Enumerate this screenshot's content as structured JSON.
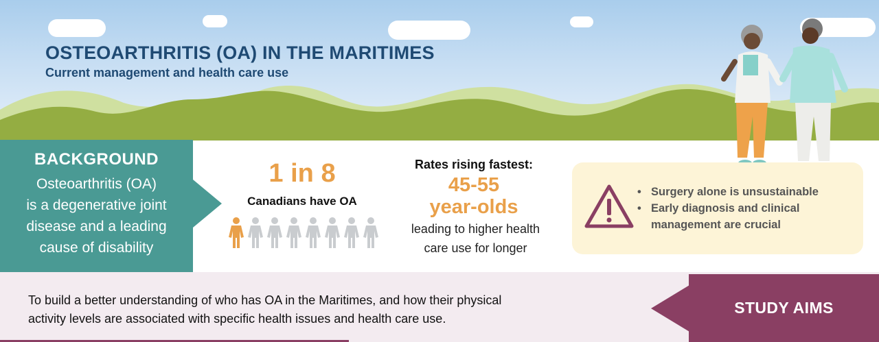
{
  "header": {
    "title": "OSTEOARTHRITIS (OA) IN THE MARITIMES",
    "subtitle": "Current management and health care use"
  },
  "background": {
    "title": "BACKGROUND",
    "lines": [
      "Osteoarthritis (OA)",
      "is a degenerative joint",
      "disease and a leading",
      "cause of disability"
    ]
  },
  "stat_prevalence": {
    "value": "1 in 8",
    "label": "Canadians have OA",
    "highlighted": 1,
    "total": 8
  },
  "stat_rates": {
    "heading": "Rates rising fastest:",
    "value_line1": "45-55",
    "value_line2": "year-olds",
    "text_line1": "leading to higher health",
    "text_line2": "care use for longer"
  },
  "warning": {
    "icon": "warning-triangle-icon",
    "bullets": [
      "Surgery alone is unsustainable",
      "Early diagnosis and clinical",
      "management are crucial"
    ]
  },
  "study_aims": {
    "title": "STUDY AIMS",
    "line1": "To build a better understanding of who has OA in the Maritimes, and how their physical",
    "line2": "activity levels are associated with specific health issues and health care use."
  },
  "colors": {
    "navy": "#1f4a73",
    "teal": "#4a9a94",
    "orange": "#e9a04a",
    "plum": "#8a3f63",
    "cream": "#fdf4d7",
    "grass": "#8aa33a"
  }
}
